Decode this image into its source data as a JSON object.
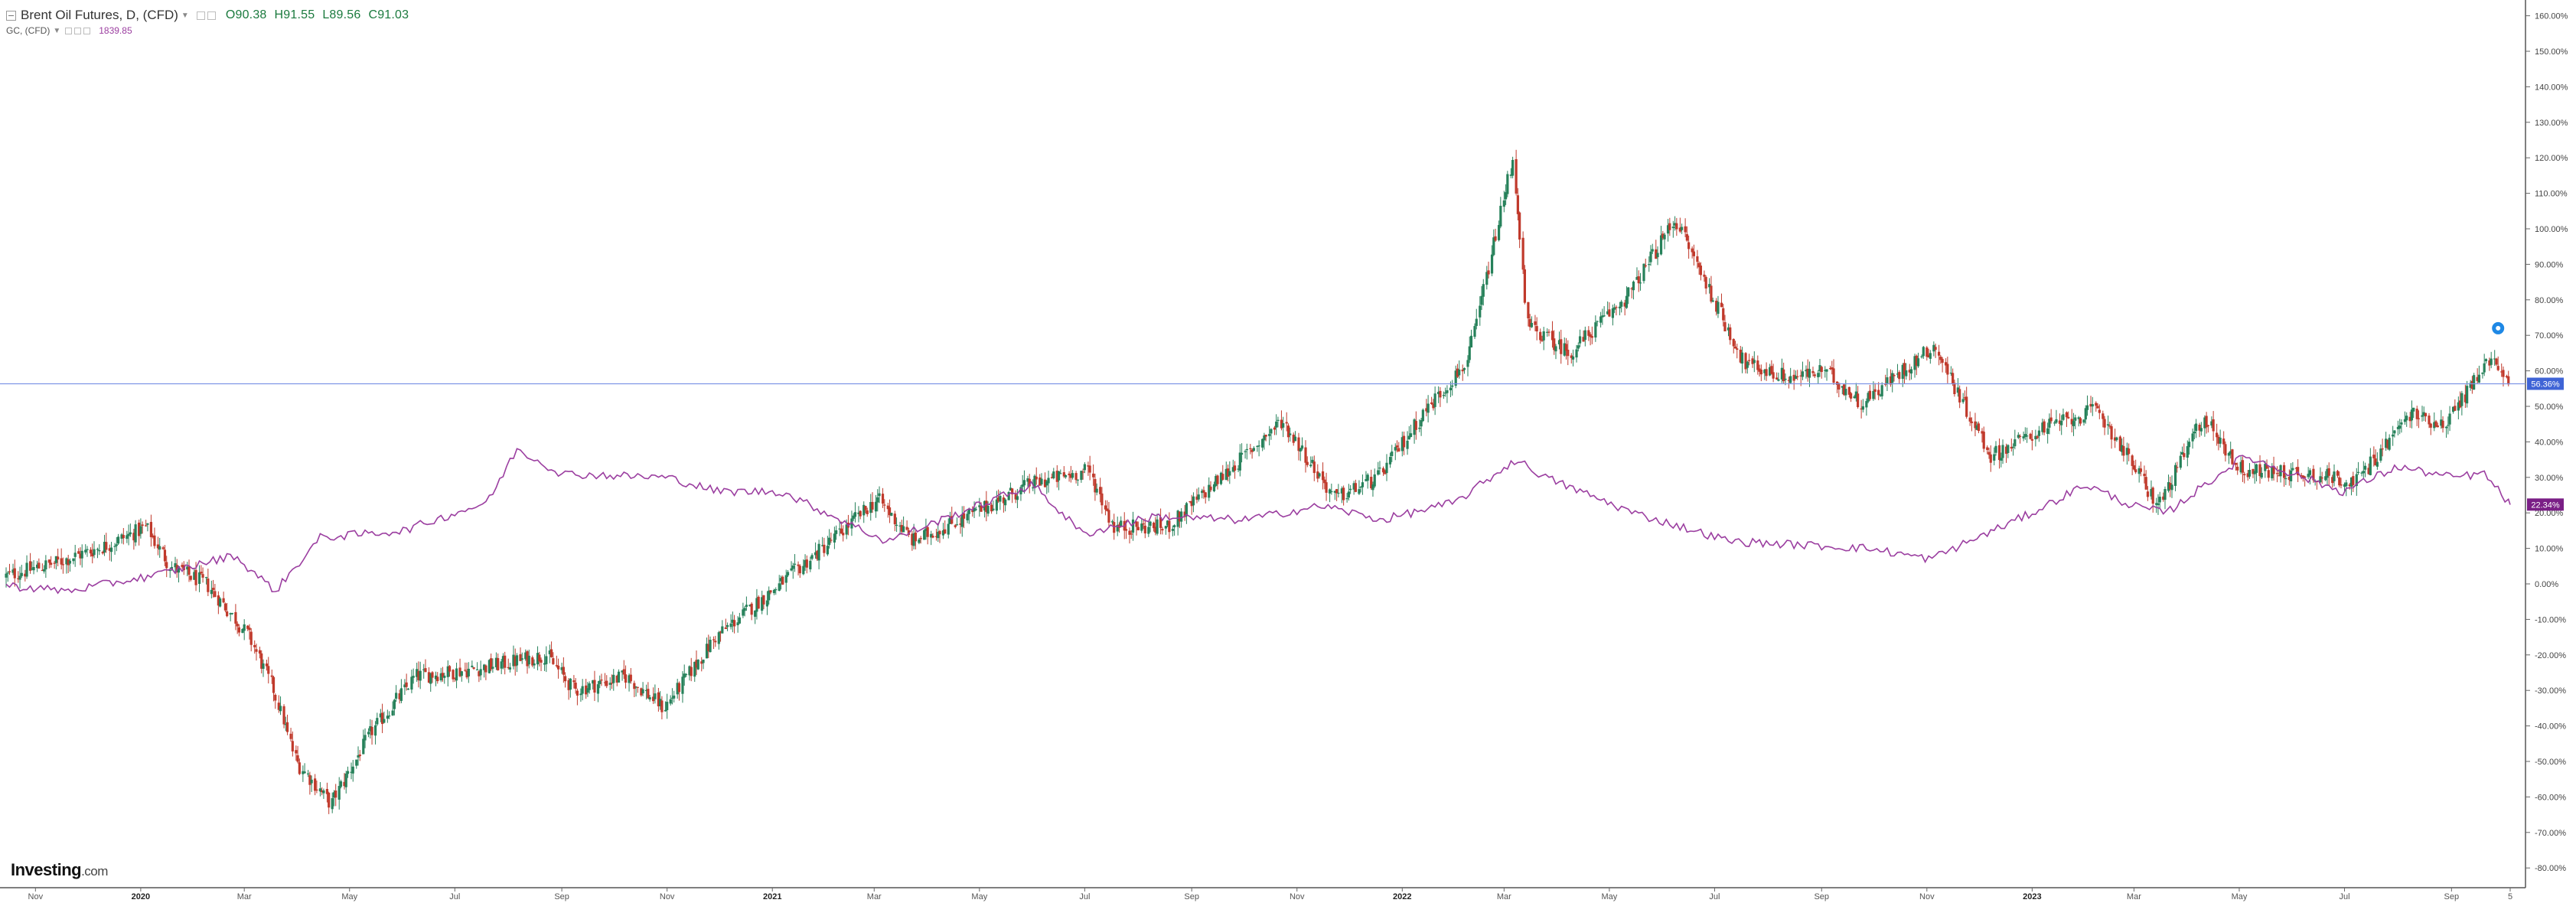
{
  "legend": {
    "primary_title": "Brent Oil Futures, D, (CFD)",
    "open": "O90.38",
    "high": "H91.55",
    "low": "L89.56",
    "close": "C91.03",
    "secondary_title": "GC, (CFD)",
    "secondary_value": "1839.85"
  },
  "logo": {
    "brand": "Investing",
    "suffix": ".com"
  },
  "colors": {
    "up": "#26815a",
    "down": "#c0392b",
    "gold_line": "#9b3ea0",
    "last_price_line": "#7f95e6",
    "last_price_tag": "#3f64d6",
    "gold_tag": "#7a1f86"
  },
  "chart_data": {
    "type": "line",
    "ylabel": "",
    "ylim": [
      -85,
      163
    ],
    "y_ticks": [
      "160.00%",
      "150.00%",
      "140.00%",
      "130.00%",
      "120.00%",
      "110.00%",
      "100.00%",
      "90.00%",
      "80.00%",
      "70.00%",
      "60.00%",
      "50.00%",
      "40.00%",
      "30.00%",
      "20.00%",
      "10.00%",
      "0.00%",
      "-10.00%",
      "-20.00%",
      "-30.00%",
      "-40.00%",
      "-50.00%",
      "-60.00%",
      "-70.00%",
      "-80.00%"
    ],
    "x_ticks": [
      "Nov",
      "2020",
      "Mar",
      "May",
      "Jul",
      "Sep",
      "Nov",
      "2021",
      "Mar",
      "May",
      "Jul",
      "Sep",
      "Nov",
      "2022",
      "Mar",
      "May",
      "Jul",
      "Sep",
      "Nov",
      "2023",
      "Mar",
      "May",
      "Jul",
      "Sep",
      "5"
    ],
    "x_range": [
      "2019-10-15",
      "2023-10-05"
    ],
    "series": [
      {
        "name": "Brent Oil Futures, D, (CFD)",
        "kind": "candlestick",
        "x": [
          "2019-10-15",
          "2019-11-15",
          "2019-12-15",
          "2020-01-06",
          "2020-01-20",
          "2020-02-10",
          "2020-03-06",
          "2020-03-20",
          "2020-04-02",
          "2020-04-22",
          "2020-05-15",
          "2020-06-10",
          "2020-07-15",
          "2020-08-25",
          "2020-09-10",
          "2020-10-10",
          "2020-11-01",
          "2020-12-01",
          "2021-01-05",
          "2021-02-01",
          "2021-03-05",
          "2021-03-25",
          "2021-04-30",
          "2021-06-01",
          "2021-07-05",
          "2021-07-20",
          "2021-08-20",
          "2021-10-01",
          "2021-10-25",
          "2021-11-25",
          "2021-12-20",
          "2022-01-15",
          "2022-02-10",
          "2022-03-08",
          "2022-03-16",
          "2022-04-10",
          "2022-05-15",
          "2022-06-10",
          "2022-07-20",
          "2022-08-15",
          "2022-09-05",
          "2022-09-26",
          "2022-11-07",
          "2022-12-10",
          "2023-01-10",
          "2023-02-10",
          "2023-03-17",
          "2023-04-12",
          "2023-05-04",
          "2023-06-12",
          "2023-07-10",
          "2023-08-10",
          "2023-08-30",
          "2023-09-27",
          "2023-10-05"
        ],
        "values": [
          2,
          6,
          11,
          16,
          5,
          0,
          -15,
          -30,
          -50,
          -62,
          -42,
          -26,
          -24,
          -20,
          -30,
          -26,
          -35,
          -15,
          -1,
          10,
          24,
          12,
          20,
          28,
          32,
          16,
          16,
          35,
          46,
          24,
          30,
          48,
          63,
          120,
          73,
          65,
          82,
          103,
          62,
          58,
          60,
          51,
          67,
          36,
          44,
          49,
          22,
          47,
          32,
          31,
          29,
          48,
          45,
          65,
          56
        ]
      },
      {
        "name": "GC, (CFD)",
        "kind": "line",
        "x": [
          "2019-10-15",
          "2019-11-20",
          "2020-01-10",
          "2020-02-24",
          "2020-03-19",
          "2020-04-14",
          "2020-06-01",
          "2020-07-20",
          "2020-08-06",
          "2020-09-01",
          "2020-11-01",
          "2020-12-01",
          "2021-01-06",
          "2021-03-08",
          "2021-06-01",
          "2021-06-30",
          "2021-08-10",
          "2021-10-01",
          "2021-11-16",
          "2021-12-20",
          "2022-02-01",
          "2022-03-08",
          "2022-03-25",
          "2022-05-15",
          "2022-07-10",
          "2022-09-28",
          "2022-11-03",
          "2023-01-01",
          "2023-02-01",
          "2023-02-28",
          "2023-03-20",
          "2023-05-04",
          "2023-06-30",
          "2023-08-01",
          "2023-09-01",
          "2023-09-20",
          "2023-10-05"
        ],
        "values": [
          -0.5,
          -2,
          2.5,
          8,
          -2,
          13,
          15,
          23,
          38,
          31,
          30,
          26,
          26,
          12,
          28,
          14,
          19,
          18,
          22,
          18,
          23,
          35,
          30,
          20,
          12,
          10,
          7,
          20,
          28,
          22,
          20,
          36,
          26,
          33,
          30,
          31,
          22.3
        ]
      }
    ],
    "last_price_label": "56.36%",
    "secondary_value_label": "22.34%"
  }
}
